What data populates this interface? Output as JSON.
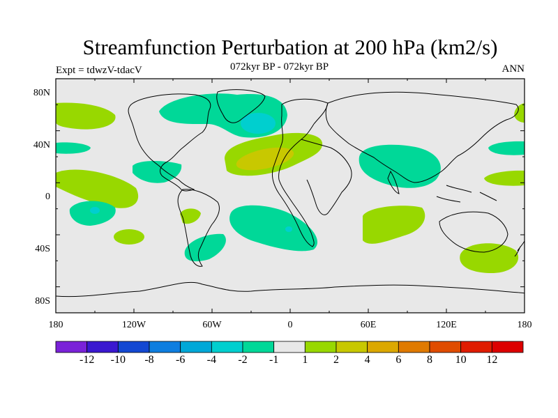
{
  "title": "Streamfunction Perturbation at 200 hPa (km2/s)",
  "subtitle": "072kyr BP - 072kyr BP",
  "left_label": "Expt = tdwzV-tdacV",
  "right_label": "ANN",
  "axes": {
    "lat_ticks": [
      "80N",
      "40N",
      "0",
      "40S",
      "80S"
    ],
    "lon_ticks": [
      "180",
      "120W",
      "60W",
      "0",
      "60E",
      "120E",
      "180"
    ]
  },
  "colorbar": {
    "labels": [
      "-12",
      "-10",
      "-8",
      "-6",
      "-4",
      "-2",
      "-1",
      "1",
      "2",
      "4",
      "6",
      "8",
      "10",
      "12"
    ],
    "colors": [
      "#7a22d8",
      "#3a18d0",
      "#1348d2",
      "#0e7ee0",
      "#00a8d8",
      "#00cfcf",
      "#00d898",
      "#e8e8e8",
      "#98d800",
      "#c8c800",
      "#dca800",
      "#e07a00",
      "#e04c00",
      "#e01c00",
      "#dd0000"
    ]
  },
  "chart_data": {
    "type": "heatmap",
    "variable": "Streamfunction Perturbation at 200 hPa",
    "units": "km2/s",
    "levels": [
      -12,
      -10,
      -8,
      -6,
      -4,
      -2,
      -1,
      1,
      2,
      4,
      6,
      8,
      10,
      12
    ],
    "region": "global",
    "features": [
      {
        "sign": "negative",
        "value": -2,
        "lon": -40,
        "lat": 67
      },
      {
        "sign": "negative",
        "value": -4,
        "lon": -25,
        "lat": 63
      },
      {
        "sign": "positive",
        "value": 2,
        "lon": -20,
        "lat": 28
      },
      {
        "sign": "positive",
        "value": 4,
        "lon": -25,
        "lat": 26
      },
      {
        "sign": "negative",
        "value": -2,
        "lon": 80,
        "lat": 28
      },
      {
        "sign": "negative",
        "value": -2,
        "lon": -20,
        "lat": -25
      },
      {
        "sign": "positive",
        "value": 2,
        "lon": 75,
        "lat": -25
      },
      {
        "sign": "positive",
        "value": 2,
        "lon": 145,
        "lat": -48
      },
      {
        "sign": "negative",
        "value": -2,
        "lon": -140,
        "lat": -13
      },
      {
        "sign": "positive",
        "value": 2,
        "lon": -150,
        "lat": 7
      },
      {
        "sign": "negative",
        "value": -2,
        "lon": -80,
        "lat": 17
      },
      {
        "sign": "negative",
        "value": -2,
        "lon": -60,
        "lat": -45
      }
    ]
  }
}
